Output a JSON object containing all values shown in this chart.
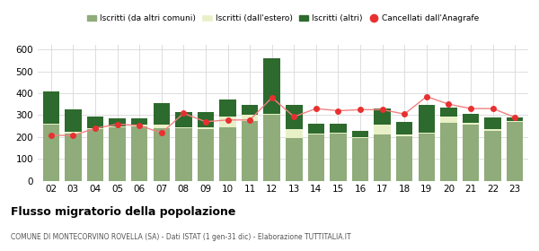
{
  "years": [
    "02",
    "03",
    "04",
    "05",
    "06",
    "07",
    "08",
    "09",
    "10",
    "11",
    "12",
    "13",
    "14",
    "15",
    "16",
    "17",
    "18",
    "19",
    "20",
    "21",
    "22",
    "23"
  ],
  "iscritti_altri_comuni": [
    255,
    215,
    235,
    245,
    250,
    240,
    240,
    238,
    245,
    275,
    300,
    195,
    210,
    215,
    195,
    210,
    205,
    215,
    265,
    255,
    230,
    270
  ],
  "iscritti_estero": [
    5,
    10,
    5,
    5,
    5,
    15,
    5,
    5,
    50,
    25,
    5,
    40,
    5,
    5,
    5,
    45,
    5,
    5,
    30,
    10,
    5,
    5
  ],
  "iscritti_altri": [
    148,
    100,
    55,
    35,
    30,
    100,
    70,
    70,
    75,
    45,
    255,
    110,
    45,
    40,
    30,
    75,
    60,
    125,
    40,
    40,
    55,
    15
  ],
  "cancellati": [
    208,
    207,
    240,
    258,
    253,
    218,
    308,
    270,
    278,
    278,
    380,
    293,
    330,
    320,
    325,
    325,
    305,
    385,
    350,
    330,
    330,
    290
  ],
  "color_altri_comuni": "#8fac7a",
  "color_estero": "#e8f0c8",
  "color_altri": "#2d6a2d",
  "color_cancellati": "#e83030",
  "color_line_cancellati": "#f08080",
  "ylim": [
    0,
    620
  ],
  "yticks": [
    0,
    100,
    200,
    300,
    400,
    500,
    600
  ],
  "title_bold": "Flusso migratorio della popolazione",
  "subtitle": "COMUNE DI MONTECORVINO ROVELLA (SA) - Dati ISTAT (1 gen-31 dic) - Elaborazione TUTTITALIA.IT",
  "legend_labels": [
    "Iscritti (da altri comuni)",
    "Iscritti (dall'estero)",
    "Iscritti (altri)",
    "Cancellati dall'Anagrafe"
  ],
  "background_color": "#ffffff",
  "grid_color": "#dddddd"
}
